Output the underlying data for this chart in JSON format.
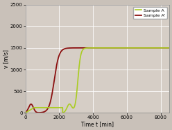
{
  "title": "",
  "xlabel": "Time t [min]",
  "ylabel": "v [m/s]",
  "xlim": [
    0,
    8500
  ],
  "ylim": [
    0,
    2500
  ],
  "xticks": [
    0,
    2000,
    4000,
    6000,
    8000
  ],
  "yticks": [
    0,
    500,
    1000,
    1500,
    2000,
    2500
  ],
  "background_color": "#c9c1b9",
  "plot_bg_color": "#d6cec6",
  "grid_color": "#ffffff",
  "sample_A_color": "#aacc22",
  "sample_Ap_color": "#8b1010",
  "legend_labels": [
    "Sample A",
    "Sample A'"
  ]
}
